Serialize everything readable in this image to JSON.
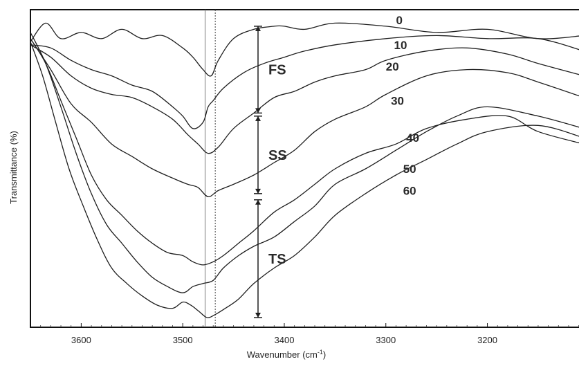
{
  "chart_data": {
    "type": "line",
    "title": "",
    "xlabel": "Wavenumber (cm⁻¹)",
    "xlabel_parts": {
      "main": "Wavenumber (cm",
      "sup": "-1",
      "close": ")"
    },
    "ylabel": "Transmittance (%)",
    "xlim": [
      3650,
      3105
    ],
    "x_reversed": true,
    "ylim": [
      0,
      100
    ],
    "y_tick_labels_shown": false,
    "grid": false,
    "x_ticks": [
      3600,
      3500,
      3400,
      3300,
      3200
    ],
    "x_tick_labels": [
      "3600",
      "3500",
      "3400",
      "3300",
      "3200"
    ],
    "reference_lines": [
      {
        "x": 3478,
        "style": "solid"
      },
      {
        "x": 3468,
        "style": "dotted"
      }
    ],
    "stage_markers": [
      {
        "label": "FS",
        "y_top": 96,
        "y_bottom": 68
      },
      {
        "label": "SS",
        "y_top": 67,
        "y_bottom": 42
      },
      {
        "label": "TS",
        "y_top": 40,
        "y_bottom": 2
      }
    ],
    "series": [
      {
        "name": "0",
        "x": [
          3650,
          3635,
          3620,
          3600,
          3580,
          3560,
          3540,
          3520,
          3500,
          3490,
          3480,
          3472,
          3465,
          3450,
          3430,
          3410,
          3400,
          3380,
          3350,
          3300,
          3250,
          3200,
          3150,
          3105
        ],
        "y": [
          91,
          97,
          92,
          94,
          92,
          95,
          92,
          93,
          89,
          86,
          82,
          80,
          85,
          92,
          95,
          96,
          96,
          95,
          97,
          96,
          94,
          95,
          92,
          93
        ]
      },
      {
        "name": "10",
        "x": [
          3650,
          3630,
          3610,
          3590,
          3570,
          3550,
          3530,
          3510,
          3500,
          3490,
          3480,
          3475,
          3470,
          3460,
          3440,
          3420,
          3400,
          3380,
          3350,
          3300,
          3250,
          3200,
          3150,
          3105
        ],
        "y": [
          90,
          89,
          85,
          82,
          80,
          77,
          75,
          70,
          67,
          63,
          65,
          70,
          72,
          76,
          81,
          84,
          86,
          88,
          90,
          92,
          93,
          92,
          92,
          88
        ]
      },
      {
        "name": "20",
        "x": [
          3650,
          3630,
          3610,
          3590,
          3570,
          3550,
          3530,
          3510,
          3495,
          3485,
          3475,
          3465,
          3450,
          3430,
          3410,
          3390,
          3370,
          3350,
          3320,
          3300,
          3260,
          3220,
          3180,
          3150,
          3105
        ],
        "y": [
          90,
          86,
          80,
          76,
          74,
          73,
          70,
          66,
          61,
          58,
          55,
          57,
          63,
          68,
          73,
          75,
          78,
          80,
          82,
          85,
          88,
          89,
          87,
          84,
          80
        ]
      },
      {
        "name": "30",
        "x": [
          3650,
          3630,
          3610,
          3590,
          3570,
          3550,
          3530,
          3510,
          3495,
          3485,
          3475,
          3465,
          3450,
          3430,
          3410,
          3390,
          3370,
          3350,
          3320,
          3300,
          3260,
          3220,
          3180,
          3150,
          3105
        ],
        "y": [
          92,
          82,
          71,
          65,
          58,
          54,
          50,
          47,
          45,
          44,
          41,
          43,
          45,
          48,
          52,
          56,
          62,
          66,
          70,
          74,
          80,
          82,
          81,
          78,
          73
        ]
      },
      {
        "name": "40",
        "x": [
          3650,
          3635,
          3620,
          3605,
          3590,
          3575,
          3560,
          3545,
          3530,
          3515,
          3500,
          3490,
          3480,
          3470,
          3460,
          3445,
          3430,
          3410,
          3390,
          3370,
          3350,
          3320,
          3290,
          3260,
          3220,
          3180,
          3150,
          3105
        ],
        "y": [
          92,
          84,
          72,
          60,
          48,
          40,
          35,
          30,
          26,
          23,
          22,
          20,
          19,
          20,
          22,
          26,
          30,
          36,
          40,
          45,
          50,
          55,
          58,
          63,
          66,
          67,
          62,
          58
        ]
      },
      {
        "name": "50",
        "x": [
          3650,
          3635,
          3620,
          3605,
          3590,
          3575,
          3560,
          3545,
          3530,
          3515,
          3500,
          3490,
          3480,
          3470,
          3460,
          3445,
          3430,
          3410,
          3390,
          3370,
          3350,
          3320,
          3290,
          3260,
          3230,
          3200,
          3150,
          3105
        ],
        "y": [
          94,
          84,
          70,
          55,
          42,
          32,
          26,
          20,
          15,
          12,
          10,
          12,
          13,
          14,
          18,
          22,
          25,
          28,
          33,
          38,
          45,
          50,
          56,
          62,
          67,
          70,
          67,
          63
        ]
      },
      {
        "name": "60",
        "x": [
          3650,
          3638,
          3626,
          3612,
          3598,
          3584,
          3570,
          3555,
          3540,
          3525,
          3510,
          3500,
          3492,
          3484,
          3476,
          3468,
          3458,
          3445,
          3430,
          3410,
          3390,
          3370,
          3350,
          3320,
          3290,
          3260,
          3230,
          3200,
          3150,
          3105
        ],
        "y": [
          91,
          80,
          66,
          50,
          38,
          27,
          18,
          13,
          9,
          6,
          5,
          7,
          6,
          4,
          2,
          3,
          5,
          8,
          13,
          18,
          22,
          28,
          35,
          42,
          48,
          53,
          58,
          62,
          64,
          60
        ]
      }
    ],
    "series_label_pos": [
      {
        "name": "0",
        "x": 3290,
        "y": 98
      },
      {
        "name": "10",
        "x": 3292,
        "y": 90
      },
      {
        "name": "20",
        "x": 3300,
        "y": 83
      },
      {
        "name": "30",
        "x": 3295,
        "y": 72
      },
      {
        "name": "40",
        "x": 3280,
        "y": 60
      },
      {
        "name": "50",
        "x": 3283,
        "y": 50
      },
      {
        "name": "60",
        "x": 3283,
        "y": 43
      }
    ]
  }
}
